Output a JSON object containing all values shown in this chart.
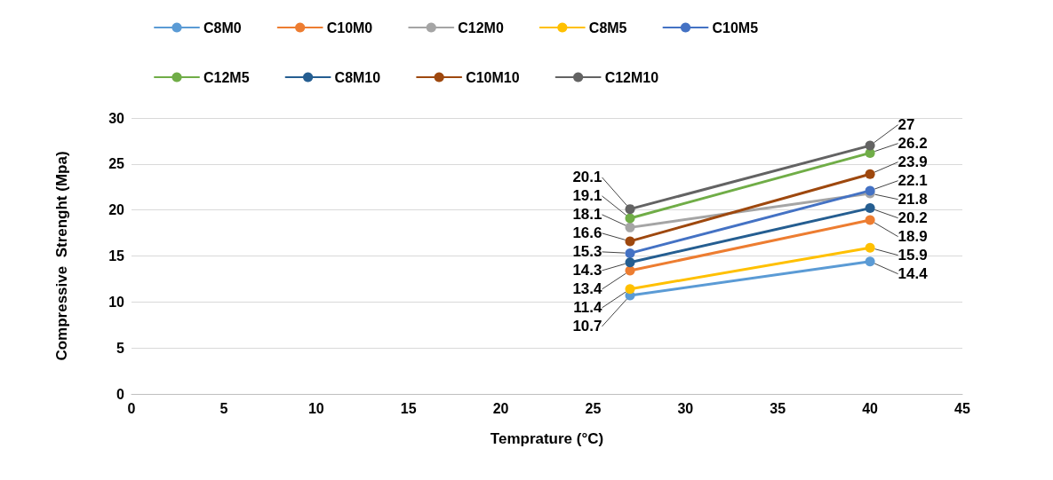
{
  "chart_data": {
    "type": "line",
    "xlabel": "Temprature (°C)",
    "ylabel": "Compressive  Strenght (Mpa)",
    "x": [
      27,
      40
    ],
    "series": [
      {
        "name": "C8M0",
        "color": "#5b9bd5",
        "values": [
          10.7,
          14.4
        ]
      },
      {
        "name": "C10M0",
        "color": "#ed7d31",
        "values": [
          13.4,
          18.9
        ]
      },
      {
        "name": "C12M0",
        "color": "#a5a5a5",
        "values": [
          18.1,
          21.8
        ]
      },
      {
        "name": "C8M5",
        "color": "#ffc000",
        "values": [
          11.4,
          15.9
        ]
      },
      {
        "name": "C10M5",
        "color": "#4472c4",
        "values": [
          15.3,
          22.1
        ]
      },
      {
        "name": "C12M5",
        "color": "#70ad47",
        "values": [
          19.1,
          26.2
        ]
      },
      {
        "name": "C8M10",
        "color": "#255e91",
        "values": [
          14.3,
          20.2
        ]
      },
      {
        "name": "C10M10",
        "color": "#9e480e",
        "values": [
          16.6,
          23.9
        ]
      },
      {
        "name": "C12M10",
        "color": "#636363",
        "values": [
          20.1,
          27
        ]
      }
    ],
    "xlim": [
      0,
      45
    ],
    "xticks": [
      0,
      5,
      10,
      15,
      20,
      25,
      30,
      35,
      40,
      45
    ],
    "ylim": [
      0,
      30
    ],
    "yticks": [
      0,
      5,
      10,
      15,
      20,
      25,
      30
    ],
    "grid": "y",
    "legend": "top",
    "marker": "circle",
    "line_style": "solid",
    "data_labels": true
  }
}
